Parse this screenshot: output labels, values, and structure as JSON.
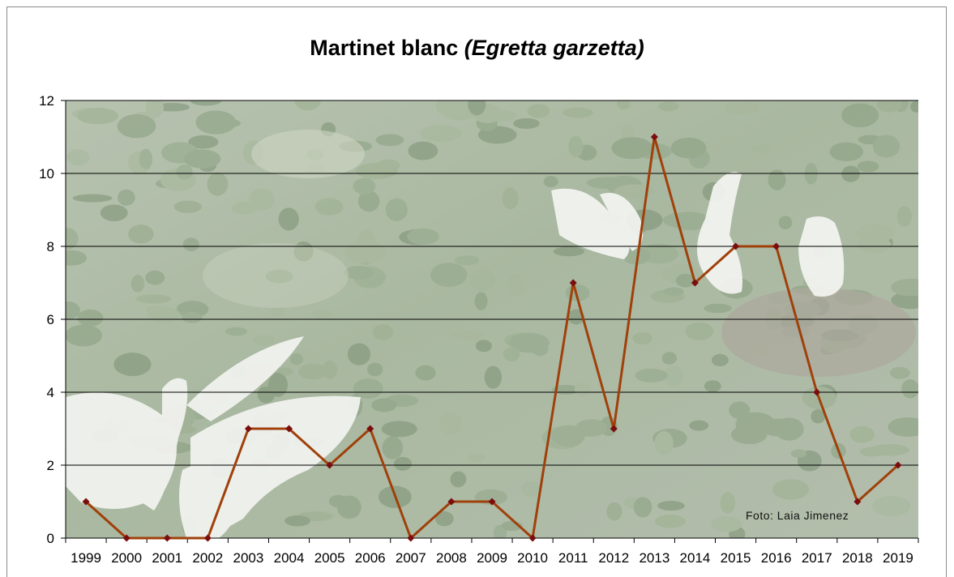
{
  "chart_data": {
    "type": "line",
    "title": "Martinet blanc",
    "title_italic": "(Egretta garzetta)",
    "xlabel": "",
    "ylabel": "",
    "x": [
      "1999",
      "2000",
      "2001",
      "2002",
      "2003",
      "2004",
      "2005",
      "2006",
      "2007",
      "2008",
      "2009",
      "2010",
      "2011",
      "2012",
      "2013",
      "2014",
      "2015",
      "2016",
      "2017",
      "2018",
      "2019"
    ],
    "values": [
      1,
      0,
      0,
      0,
      3,
      3,
      2,
      3,
      0,
      1,
      1,
      0,
      7,
      3,
      11,
      7,
      8,
      8,
      4,
      1,
      2
    ],
    "ylim": [
      0,
      12
    ],
    "yticks": [
      "0",
      "2",
      "4",
      "6",
      "8",
      "10",
      "12"
    ],
    "grid": "horizontal",
    "line_color": "#a0400a",
    "marker_color": "#7a0d0d",
    "background_photo": "little egrets among foliage, faded",
    "photo_credit": "Foto: Laia Jimenez"
  }
}
